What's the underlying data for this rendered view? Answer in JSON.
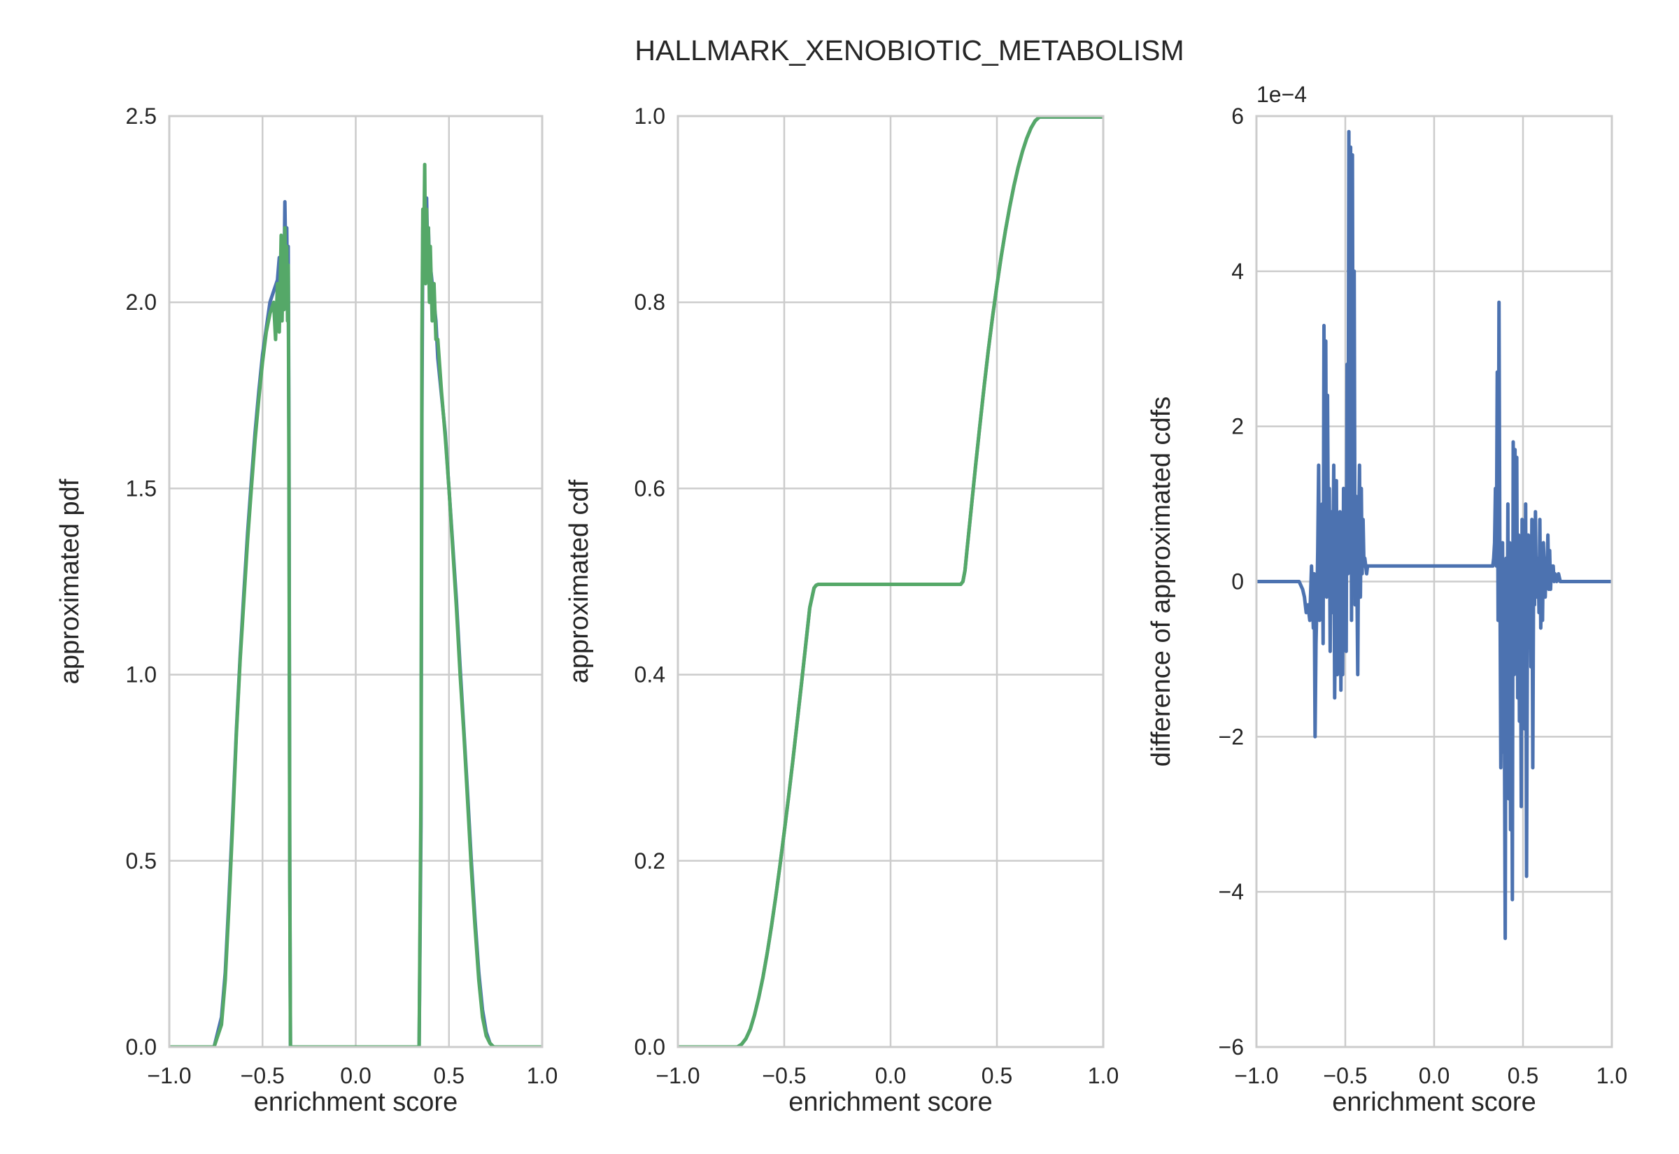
{
  "title": "HALLMARK_XENOBIOTIC_METABOLISM",
  "colors": {
    "blue": "#4c72b0",
    "green": "#55a868"
  },
  "chart_data": [
    {
      "type": "line",
      "xlabel": "enrichment score",
      "ylabel": "approximated pdf",
      "xlim": [
        -1.0,
        1.0
      ],
      "ylim": [
        0.0,
        2.5
      ],
      "xticks": [
        "−1.0",
        "−0.5",
        "0.0",
        "0.5",
        "1.0"
      ],
      "yticks": [
        "0.0",
        "0.5",
        "1.0",
        "1.5",
        "2.0",
        "2.5"
      ],
      "grid": true,
      "series": [
        {
          "color": "#4c72b0",
          "x": [
            -1.0,
            -0.76,
            -0.72,
            -0.7,
            -0.68,
            -0.66,
            -0.64,
            -0.62,
            -0.6,
            -0.58,
            -0.56,
            -0.54,
            -0.52,
            -0.5,
            -0.48,
            -0.46,
            -0.44,
            -0.42,
            -0.41,
            -0.4,
            -0.39,
            -0.385,
            -0.38,
            -0.375,
            -0.37,
            -0.366,
            -0.362,
            -0.358,
            -0.354,
            -0.35,
            -0.34,
            -0.33,
            -0.31,
            0.31,
            0.33,
            0.34,
            0.35,
            0.355,
            0.36,
            0.365,
            0.37,
            0.375,
            0.38,
            0.385,
            0.39,
            0.395,
            0.4,
            0.41,
            0.42,
            0.43,
            0.44,
            0.46,
            0.48,
            0.5,
            0.52,
            0.54,
            0.56,
            0.58,
            0.6,
            0.62,
            0.64,
            0.66,
            0.68,
            0.7,
            0.72,
            0.74,
            0.76,
            1.0
          ],
          "y": [
            0.0,
            0.0,
            0.08,
            0.2,
            0.4,
            0.62,
            0.85,
            1.05,
            1.22,
            1.38,
            1.52,
            1.65,
            1.76,
            1.86,
            1.93,
            2.0,
            2.03,
            2.06,
            2.12,
            2.02,
            2.15,
            2.05,
            2.27,
            2.1,
            2.2,
            2.0,
            2.15,
            1.6,
            0.5,
            0.0,
            0.0,
            0.0,
            0.0,
            0.0,
            0.0,
            0.0,
            0.6,
            1.7,
            2.2,
            2.25,
            2.2,
            2.1,
            2.28,
            2.15,
            2.2,
            2.1,
            2.1,
            2.05,
            2.0,
            1.95,
            1.85,
            1.75,
            1.65,
            1.5,
            1.35,
            1.2,
            1.02,
            0.85,
            0.68,
            0.5,
            0.34,
            0.2,
            0.1,
            0.04,
            0.01,
            0.0,
            0.0,
            0.0
          ]
        },
        {
          "color": "#55a868",
          "x": [
            -1.0,
            -0.76,
            -0.72,
            -0.7,
            -0.68,
            -0.66,
            -0.64,
            -0.62,
            -0.6,
            -0.58,
            -0.56,
            -0.54,
            -0.52,
            -0.5,
            -0.48,
            -0.46,
            -0.44,
            -0.43,
            -0.42,
            -0.41,
            -0.4,
            -0.395,
            -0.39,
            -0.385,
            -0.38,
            -0.375,
            -0.37,
            -0.366,
            -0.362,
            -0.358,
            -0.354,
            -0.35,
            -0.34,
            -0.33,
            -0.31,
            0.31,
            0.33,
            0.34,
            0.35,
            0.355,
            0.36,
            0.365,
            0.37,
            0.375,
            0.38,
            0.385,
            0.39,
            0.395,
            0.4,
            0.41,
            0.42,
            0.43,
            0.44,
            0.46,
            0.48,
            0.5,
            0.52,
            0.54,
            0.56,
            0.58,
            0.6,
            0.62,
            0.64,
            0.66,
            0.68,
            0.7,
            0.72,
            0.74,
            0.76,
            1.0
          ],
          "y": [
            0.0,
            0.0,
            0.06,
            0.18,
            0.38,
            0.6,
            0.84,
            1.04,
            1.2,
            1.36,
            1.5,
            1.63,
            1.74,
            1.84,
            1.92,
            1.97,
            2.0,
            1.9,
            2.05,
            1.92,
            2.18,
            1.95,
            2.12,
            1.98,
            2.2,
            2.05,
            2.15,
            1.95,
            2.1,
            1.5,
            0.45,
            0.0,
            0.0,
            0.0,
            0.0,
            0.0,
            0.0,
            0.0,
            0.7,
            1.9,
            2.25,
            2.15,
            2.37,
            2.05,
            2.25,
            2.1,
            2.2,
            2.0,
            2.15,
            1.95,
            2.05,
            1.9,
            1.9,
            1.76,
            1.64,
            1.5,
            1.34,
            1.18,
            1.0,
            0.84,
            0.66,
            0.48,
            0.32,
            0.18,
            0.08,
            0.03,
            0.01,
            0.0,
            0.0,
            0.0
          ]
        }
      ]
    },
    {
      "type": "line",
      "xlabel": "enrichment score",
      "ylabel": "approximated cdf",
      "xlim": [
        -1.0,
        1.0
      ],
      "ylim": [
        0.0,
        1.0
      ],
      "xticks": [
        "−1.0",
        "−0.5",
        "0.0",
        "0.5",
        "1.0"
      ],
      "yticks": [
        "0.0",
        "0.2",
        "0.4",
        "0.6",
        "0.8",
        "1.0"
      ],
      "grid": true,
      "series": [
        {
          "color": "#4c72b0",
          "x": [
            -1.0,
            -0.72,
            -0.7,
            -0.68,
            -0.66,
            -0.64,
            -0.62,
            -0.6,
            -0.58,
            -0.56,
            -0.54,
            -0.52,
            -0.5,
            -0.48,
            -0.46,
            -0.44,
            -0.42,
            -0.4,
            -0.38,
            -0.36,
            -0.35,
            -0.34,
            0.33,
            0.34,
            0.35,
            0.36,
            0.38,
            0.4,
            0.42,
            0.44,
            0.46,
            0.48,
            0.5,
            0.52,
            0.54,
            0.56,
            0.58,
            0.6,
            0.62,
            0.64,
            0.66,
            0.68,
            0.7,
            1.0
          ],
          "y": [
            0.0,
            0.0,
            0.003,
            0.009,
            0.019,
            0.034,
            0.053,
            0.075,
            0.101,
            0.13,
            0.161,
            0.195,
            0.231,
            0.268,
            0.307,
            0.347,
            0.388,
            0.43,
            0.472,
            0.493,
            0.496,
            0.497,
            0.497,
            0.5,
            0.512,
            0.535,
            0.58,
            0.625,
            0.668,
            0.71,
            0.749,
            0.785,
            0.818,
            0.849,
            0.877,
            0.902,
            0.925,
            0.945,
            0.962,
            0.976,
            0.987,
            0.995,
            0.999,
            0.999
          ]
        },
        {
          "color": "#55a868",
          "x": [
            -1.0,
            -0.72,
            -0.7,
            -0.68,
            -0.66,
            -0.64,
            -0.62,
            -0.6,
            -0.58,
            -0.56,
            -0.54,
            -0.52,
            -0.5,
            -0.48,
            -0.46,
            -0.44,
            -0.42,
            -0.4,
            -0.38,
            -0.36,
            -0.35,
            -0.34,
            0.33,
            0.34,
            0.35,
            0.36,
            0.38,
            0.4,
            0.42,
            0.44,
            0.46,
            0.48,
            0.5,
            0.52,
            0.54,
            0.56,
            0.58,
            0.6,
            0.62,
            0.64,
            0.66,
            0.68,
            0.7,
            1.0
          ],
          "y": [
            0.0,
            0.0,
            0.003,
            0.009,
            0.019,
            0.034,
            0.053,
            0.075,
            0.101,
            0.13,
            0.161,
            0.195,
            0.231,
            0.268,
            0.307,
            0.347,
            0.388,
            0.43,
            0.472,
            0.493,
            0.496,
            0.497,
            0.497,
            0.5,
            0.512,
            0.535,
            0.58,
            0.625,
            0.668,
            0.71,
            0.749,
            0.785,
            0.818,
            0.849,
            0.877,
            0.902,
            0.925,
            0.945,
            0.962,
            0.976,
            0.987,
            0.995,
            0.999,
            0.999
          ]
        }
      ]
    },
    {
      "type": "line",
      "xlabel": "enrichment score",
      "ylabel": "difference of approximated cdfs",
      "xlim": [
        -1.0,
        1.0
      ],
      "ylim": [
        -6,
        6
      ],
      "offset_label": "1e−4",
      "xticks": [
        "−1.0",
        "−0.5",
        "0.0",
        "0.5",
        "1.0"
      ],
      "yticks": [
        "−6",
        "−4",
        "−2",
        "0",
        "2",
        "4",
        "6"
      ],
      "grid": true,
      "series": [
        {
          "color": "#4c72b0",
          "x": [
            -1.0,
            -0.8,
            -0.76,
            -0.74,
            -0.73,
            -0.72,
            -0.71,
            -0.7,
            -0.69,
            -0.68,
            -0.675,
            -0.67,
            -0.665,
            -0.66,
            -0.655,
            -0.65,
            -0.645,
            -0.64,
            -0.635,
            -0.63,
            -0.625,
            -0.62,
            -0.615,
            -0.61,
            -0.605,
            -0.6,
            -0.595,
            -0.59,
            -0.585,
            -0.58,
            -0.575,
            -0.57,
            -0.565,
            -0.56,
            -0.555,
            -0.55,
            -0.545,
            -0.54,
            -0.535,
            -0.53,
            -0.525,
            -0.52,
            -0.515,
            -0.51,
            -0.505,
            -0.5,
            -0.495,
            -0.49,
            -0.485,
            -0.48,
            -0.475,
            -0.47,
            -0.465,
            -0.46,
            -0.455,
            -0.45,
            -0.445,
            -0.44,
            -0.435,
            -0.43,
            -0.425,
            -0.42,
            -0.415,
            -0.41,
            -0.405,
            -0.4,
            -0.395,
            -0.39,
            -0.385,
            -0.38,
            -0.375,
            -0.37,
            -0.365,
            -0.36,
            -0.355,
            -0.35,
            -0.34,
            -0.33,
            0.32,
            0.33,
            0.335,
            0.34,
            0.345,
            0.35,
            0.355,
            0.36,
            0.365,
            0.37,
            0.375,
            0.38,
            0.385,
            0.39,
            0.395,
            0.4,
            0.405,
            0.41,
            0.415,
            0.42,
            0.425,
            0.43,
            0.435,
            0.44,
            0.445,
            0.45,
            0.455,
            0.46,
            0.465,
            0.47,
            0.475,
            0.48,
            0.485,
            0.49,
            0.495,
            0.5,
            0.505,
            0.51,
            0.515,
            0.52,
            0.525,
            0.53,
            0.535,
            0.54,
            0.545,
            0.55,
            0.555,
            0.56,
            0.565,
            0.57,
            0.575,
            0.58,
            0.585,
            0.59,
            0.595,
            0.6,
            0.605,
            0.61,
            0.615,
            0.62,
            0.625,
            0.63,
            0.635,
            0.64,
            0.645,
            0.65,
            0.655,
            0.66,
            0.665,
            0.67,
            0.675,
            0.68,
            0.69,
            0.7,
            0.71,
            0.72,
            0.73,
            0.74,
            0.75,
            0.76,
            0.78,
            1.0
          ],
          "y": [
            0.0,
            0.0,
            0.0,
            -0.1,
            -0.2,
            -0.4,
            -0.3,
            -0.5,
            0.2,
            -0.6,
            0.1,
            -2.0,
            -0.8,
            -0.3,
            0.4,
            1.5,
            -0.5,
            0.8,
            -0.3,
            1.0,
            -0.8,
            3.3,
            0.5,
            3.1,
            -0.2,
            2.4,
            0.3,
            1.2,
            -0.9,
            0.9,
            -0.4,
            0.2,
            1.5,
            -1.5,
            -0.2,
            1.3,
            -1.2,
            0.5,
            -0.8,
            0.9,
            -1.4,
            0.3,
            -1.2,
            1.2,
            -0.6,
            0.8,
            -0.9,
            2.8,
            0.1,
            5.8,
            1.0,
            5.6,
            -0.5,
            5.5,
            0.2,
            4.0,
            -0.3,
            1.1,
            0.1,
            -1.2,
            0.6,
            1.5,
            -0.2,
            1.2,
            0.1,
            0.8,
            0.2,
            0.3,
            0.2,
            0.1,
            0.2,
            0.2,
            0.2,
            0.2,
            0.2,
            0.2,
            0.2,
            0.2,
            0.2,
            0.2,
            0.3,
            0.5,
            1.2,
            0.2,
            2.7,
            -0.5,
            3.6,
            0.2,
            -2.4,
            -1.0,
            0.5,
            -2.2,
            -1.5,
            -4.6,
            0.3,
            -1.8,
            1.0,
            -2.8,
            0.5,
            -3.2,
            -0.4,
            -4.1,
            1.8,
            -1.2,
            1.7,
            -0.5,
            1.6,
            -1.5,
            0.6,
            -1.8,
            0.2,
            -2.9,
            0.8,
            -0.3,
            0.4,
            -1.9,
            1.0,
            -3.8,
            -0.6,
            0.6,
            -0.8,
            0.4,
            -1.1,
            0.8,
            -2.4,
            0.2,
            -0.3,
            0.9,
            -0.2,
            0.1,
            0.3,
            -0.4,
            0.8,
            -0.6,
            0.2,
            -0.5,
            0.5,
            0.1,
            -0.2,
            0.3,
            0.1,
            0.6,
            -0.1,
            0.4,
            -0.1,
            0.2,
            0.1,
            0.2,
            0.0,
            0.1,
            0.0,
            0.1,
            0.0,
            0.0,
            0.0,
            0.0,
            0.0,
            0.0,
            0.0,
            0.0
          ]
        }
      ]
    }
  ]
}
